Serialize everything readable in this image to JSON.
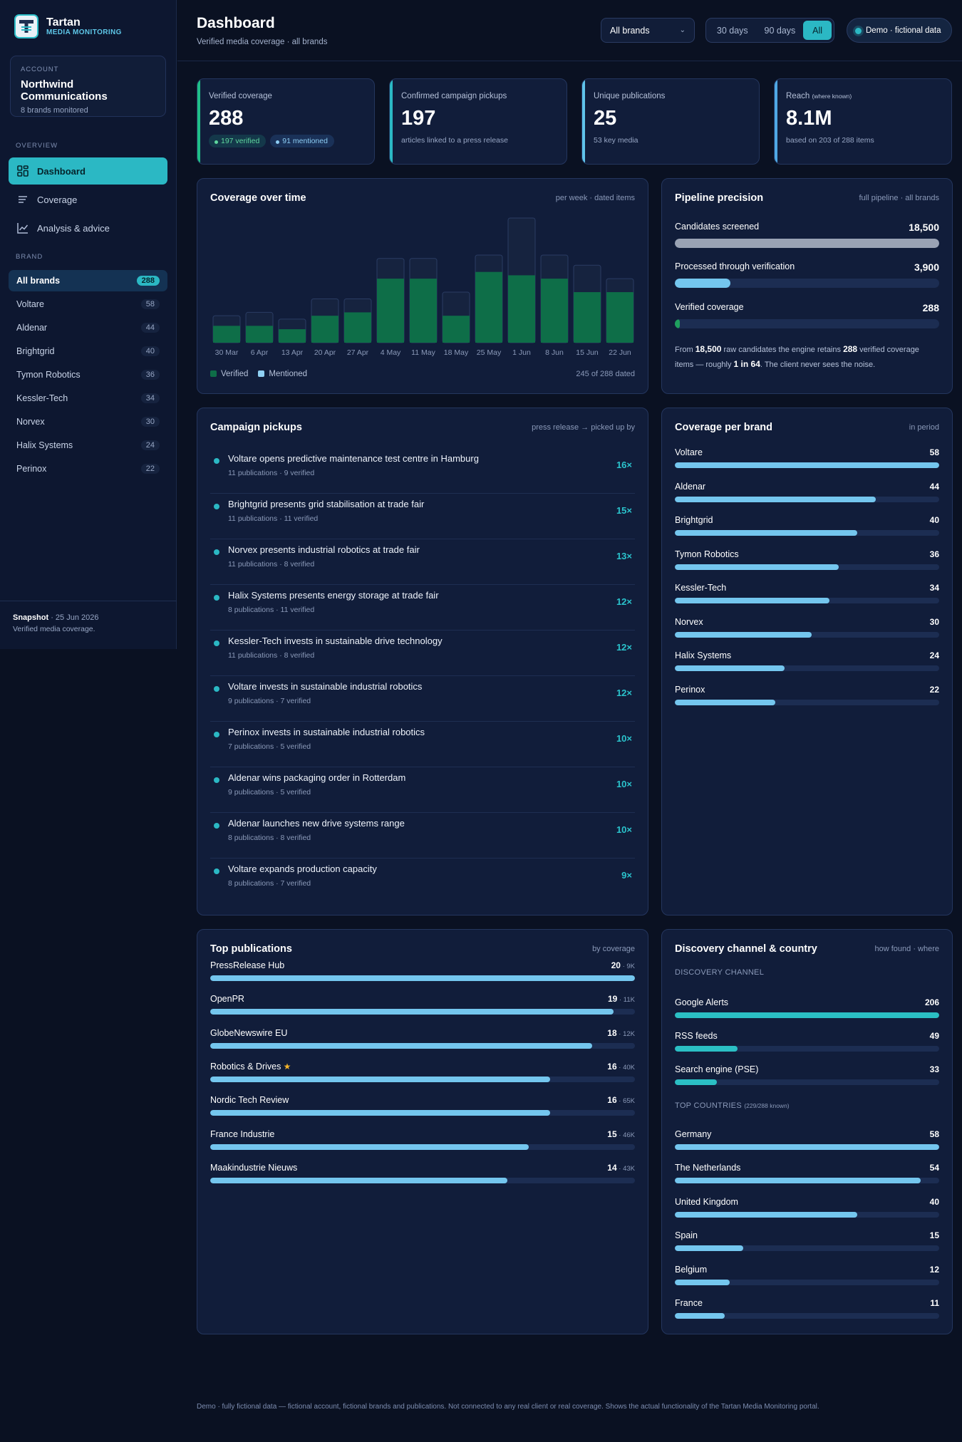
{
  "app": {
    "name": "Tartan",
    "subtitle": "MEDIA MONITORING"
  },
  "account": {
    "label": "ACCOUNT",
    "name": "Northwind Communications",
    "sub": "8 brands monitored"
  },
  "sidebar": {
    "overview_label": "OVERVIEW",
    "nav": [
      {
        "label": "Dashboard",
        "icon": "dashboard-icon",
        "active": true
      },
      {
        "label": "Coverage",
        "icon": "list-icon",
        "active": false
      },
      {
        "label": "Analysis & advice",
        "icon": "chart-line-icon",
        "active": false
      }
    ],
    "brand_label": "BRAND",
    "brands": [
      {
        "name": "All brands",
        "count": "288",
        "active": true
      },
      {
        "name": "Voltare",
        "count": "58"
      },
      {
        "name": "Aldenar",
        "count": "44"
      },
      {
        "name": "Brightgrid",
        "count": "40"
      },
      {
        "name": "Tymon Robotics",
        "count": "36"
      },
      {
        "name": "Kessler-Tech",
        "count": "34"
      },
      {
        "name": "Norvex",
        "count": "30"
      },
      {
        "name": "Halix Systems",
        "count": "24"
      },
      {
        "name": "Perinox",
        "count": "22"
      }
    ],
    "snapshot": {
      "label": "Snapshot",
      "date": "· 25 Jun 2026",
      "desc": "Verified media coverage."
    }
  },
  "header": {
    "title": "Dashboard",
    "subtitle": "Verified media coverage · all brands",
    "brand_select": "All brands",
    "periods": [
      "30 days",
      "90 days",
      "All"
    ],
    "active_period": "All",
    "demo_label": "Demo · fictional data"
  },
  "kpis": {
    "verified": {
      "label": "Verified coverage",
      "value": "288",
      "chip_verified": "197 verified",
      "chip_mentioned": "91 mentioned"
    },
    "pickups": {
      "label": "Confirmed campaign pickups",
      "value": "197",
      "sub": "articles linked to a press release"
    },
    "publications": {
      "label": "Unique publications",
      "value": "25",
      "sub": "53 key media"
    },
    "reach": {
      "label": "Reach",
      "label_small": "(where known)",
      "value": "8.1M",
      "sub": "based on 203 of 288 items"
    }
  },
  "coverage_chart": {
    "title": "Coverage over time",
    "hint": "per week · dated items",
    "legend_verified": "Verified",
    "legend_mentioned": "Mentioned",
    "footnote": "245 of 288 dated"
  },
  "chart_data": {
    "type": "bar",
    "title": "Coverage over time",
    "categories": [
      "30 Mar",
      "6 Apr",
      "13 Apr",
      "20 Apr",
      "27 Apr",
      "4 May",
      "11 May",
      "18 May",
      "25 May",
      "1 Jun",
      "8 Jun",
      "15 Jun",
      "22 Jun"
    ],
    "series": [
      {
        "name": "Verified",
        "values": [
          5,
          5,
          4,
          8,
          9,
          19,
          19,
          8,
          21,
          20,
          19,
          15,
          15
        ],
        "color": "#0e6e48"
      },
      {
        "name": "Mentioned",
        "values": [
          3,
          4,
          3,
          5,
          4,
          6,
          6,
          7,
          5,
          17,
          7,
          8,
          4
        ],
        "color": "#16233f"
      }
    ],
    "stacked": true,
    "ylim": [
      0,
      37
    ],
    "legend_position": "bottom-left"
  },
  "pipeline": {
    "title": "Pipeline precision",
    "hint": "full pipeline · all brands",
    "rows": [
      {
        "label": "Candidates screened",
        "value": "18,500",
        "fraction": 1.0,
        "color": "#9aa3b4"
      },
      {
        "label": "Processed through verification",
        "value": "3,900",
        "fraction": 0.21,
        "color": "#74c6ee"
      },
      {
        "label": "Verified coverage",
        "value": "288",
        "fraction": 0.02,
        "color": "#1f9f5e"
      }
    ],
    "note_from": "From",
    "note_candidates": "18,500",
    "note_mid": "raw candidates the engine retains",
    "note_verified": "288",
    "note_mid2": "verified coverage items — roughly",
    "note_ratio": "1 in 64",
    "note_end": ". The client never sees the noise."
  },
  "pickups": {
    "title": "Campaign pickups",
    "hint": "press release → picked up by",
    "items": [
      {
        "title": "Voltare opens predictive maintenance test centre in Hamburg",
        "sub": "11 publications · 9 verified",
        "count": "16×"
      },
      {
        "title": "Brightgrid presents grid stabilisation at trade fair",
        "sub": "11 publications · 11 verified",
        "count": "15×"
      },
      {
        "title": "Norvex presents industrial robotics at trade fair",
        "sub": "11 publications · 8 verified",
        "count": "13×"
      },
      {
        "title": "Halix Systems presents energy storage at trade fair",
        "sub": "8 publications · 11 verified",
        "count": "12×"
      },
      {
        "title": "Kessler-Tech invests in sustainable drive technology",
        "sub": "11 publications · 8 verified",
        "count": "12×"
      },
      {
        "title": "Voltare invests in sustainable industrial robotics",
        "sub": "9 publications · 7 verified",
        "count": "12×"
      },
      {
        "title": "Perinox invests in sustainable industrial robotics",
        "sub": "7 publications · 5 verified",
        "count": "10×"
      },
      {
        "title": "Aldenar wins packaging order in Rotterdam",
        "sub": "9 publications · 5 verified",
        "count": "10×"
      },
      {
        "title": "Aldenar launches new drive systems range",
        "sub": "8 publications · 8 verified",
        "count": "10×"
      },
      {
        "title": "Voltare expands production capacity",
        "sub": "8 publications · 7 verified",
        "count": "9×"
      }
    ]
  },
  "brand_coverage": {
    "title": "Coverage per brand",
    "hint": "in period",
    "items": [
      {
        "name": "Voltare",
        "value": "58",
        "fraction": 1.0
      },
      {
        "name": "Aldenar",
        "value": "44",
        "fraction": 0.759
      },
      {
        "name": "Brightgrid",
        "value": "40",
        "fraction": 0.69
      },
      {
        "name": "Tymon Robotics",
        "value": "36",
        "fraction": 0.621
      },
      {
        "name": "Kessler-Tech",
        "value": "34",
        "fraction": 0.586
      },
      {
        "name": "Norvex",
        "value": "30",
        "fraction": 0.517
      },
      {
        "name": "Halix Systems",
        "value": "24",
        "fraction": 0.414
      },
      {
        "name": "Perinox",
        "value": "22",
        "fraction": 0.379
      }
    ]
  },
  "top_publications": {
    "title": "Top publications",
    "hint": "by coverage",
    "items": [
      {
        "name": "PressRelease Hub",
        "value": "20",
        "reach": "· 9K",
        "fraction": 1.0,
        "star": false
      },
      {
        "name": "OpenPR",
        "value": "19",
        "reach": "· 11K",
        "fraction": 0.95,
        "star": false
      },
      {
        "name": "GlobeNewswire EU",
        "value": "18",
        "reach": "· 12K",
        "fraction": 0.9,
        "star": false
      },
      {
        "name": "Robotics & Drives",
        "value": "16",
        "reach": "· 40K",
        "fraction": 0.8,
        "star": true
      },
      {
        "name": "Nordic Tech Review",
        "value": "16",
        "reach": "· 65K",
        "fraction": 0.8,
        "star": false
      },
      {
        "name": "France Industrie",
        "value": "15",
        "reach": "· 46K",
        "fraction": 0.75,
        "star": false
      },
      {
        "name": "Maakindustrie Nieuws",
        "value": "14",
        "reach": "· 43K",
        "fraction": 0.7,
        "star": false
      }
    ]
  },
  "discovery": {
    "title": "Discovery channel & country",
    "hint": "how found · where",
    "channel_label": "DISCOVERY CHANNEL",
    "channels": [
      {
        "name": "Google Alerts",
        "value": "206",
        "fraction": 1.0
      },
      {
        "name": "RSS feeds",
        "value": "49",
        "fraction": 0.238
      },
      {
        "name": "Search engine (PSE)",
        "value": "33",
        "fraction": 0.16
      }
    ],
    "country_label": "TOP COUNTRIES",
    "country_label_small": "(229/288 known)",
    "countries": [
      {
        "name": "Germany",
        "value": "58",
        "fraction": 1.0
      },
      {
        "name": "The Netherlands",
        "value": "54",
        "fraction": 0.931
      },
      {
        "name": "United Kingdom",
        "value": "40",
        "fraction": 0.69
      },
      {
        "name": "Spain",
        "value": "15",
        "fraction": 0.259
      },
      {
        "name": "Belgium",
        "value": "12",
        "fraction": 0.207
      },
      {
        "name": "France",
        "value": "11",
        "fraction": 0.19
      }
    ]
  },
  "footer": "Demo · fully fictional data — fictional account, fictional brands and publications. Not connected to any real client or real coverage. Shows the actual functionality of the Tartan Media Monitoring portal."
}
